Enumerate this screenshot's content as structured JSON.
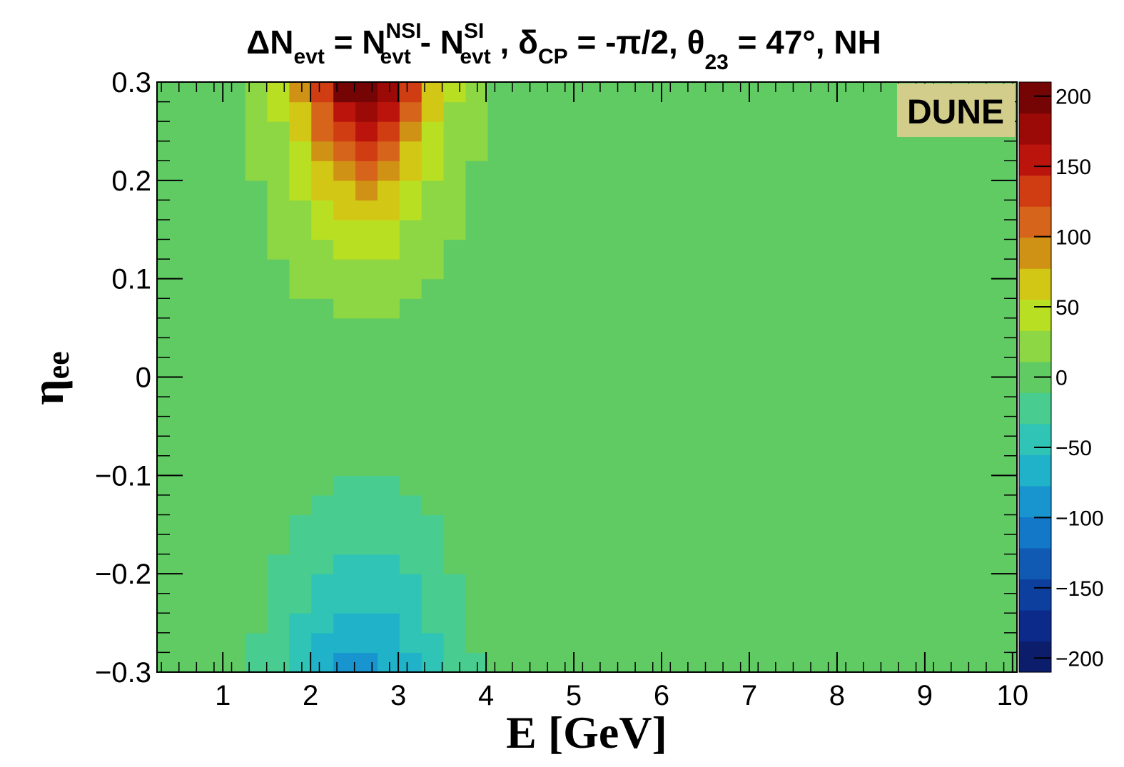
{
  "chart_data": {
    "type": "heatmap",
    "title": {
      "delta": "Δ",
      "n1": "N",
      "n1_sub": "evt",
      "eq": " = ",
      "n2": "N",
      "n2_sup": "NSI",
      "n2_sub": "evt",
      "minus": " - ",
      "n3": "N",
      "n3_sup": "SI",
      "n3_sub": "evt",
      "sep1": " ,  ",
      "delta_cp": "δ",
      "delta_cp_sub": "CP",
      "delta_cp_val": " = -π/2,  ",
      "theta": "θ",
      "theta_sub": "23",
      "theta_val": " = 47°, NH"
    },
    "xlabel": "E [GeV]",
    "ylabel": {
      "main": "η",
      "sub": "ee"
    },
    "badge": "DUNE",
    "xlim": [
      0.25,
      10.05
    ],
    "ylim": [
      -0.3,
      0.3
    ],
    "zlim": [
      -210,
      210
    ],
    "x_ticks": [
      "1",
      "2",
      "3",
      "4",
      "5",
      "6",
      "7",
      "8",
      "9",
      "10"
    ],
    "y_ticks": [
      "−0.3",
      "−0.2",
      "−0.1",
      "0",
      "0.1",
      "0.2",
      "0.3"
    ],
    "z_ticks": [
      "−200",
      "−150",
      "−100",
      "−50",
      "0",
      "50",
      "100",
      "150",
      "200"
    ],
    "grid": false,
    "model": {
      "pos_peak": 200,
      "pos_E0": 2.6,
      "pos_sigmaE": 0.75,
      "pos_eta_scale": 0.28,
      "neg_peak": -92,
      "neg_E0": 2.6,
      "neg_sigmaE": 1.0,
      "neg_eta_scale": 0.3,
      "neg_pow": 1.6,
      "flat_above_E": 6.0
    },
    "colors": [
      "#0c1d6b",
      "#0b2a8a",
      "#0d3f9f",
      "#105ab3",
      "#1378c7",
      "#1895cf",
      "#20b2c9",
      "#2fc4b5",
      "#48cc8f",
      "#60cb63",
      "#8cd743",
      "#b9df23",
      "#d3c715",
      "#cf9215",
      "#d6641a",
      "#d03d12",
      "#bb140d",
      "#9c0a08",
      "#750404"
    ]
  }
}
